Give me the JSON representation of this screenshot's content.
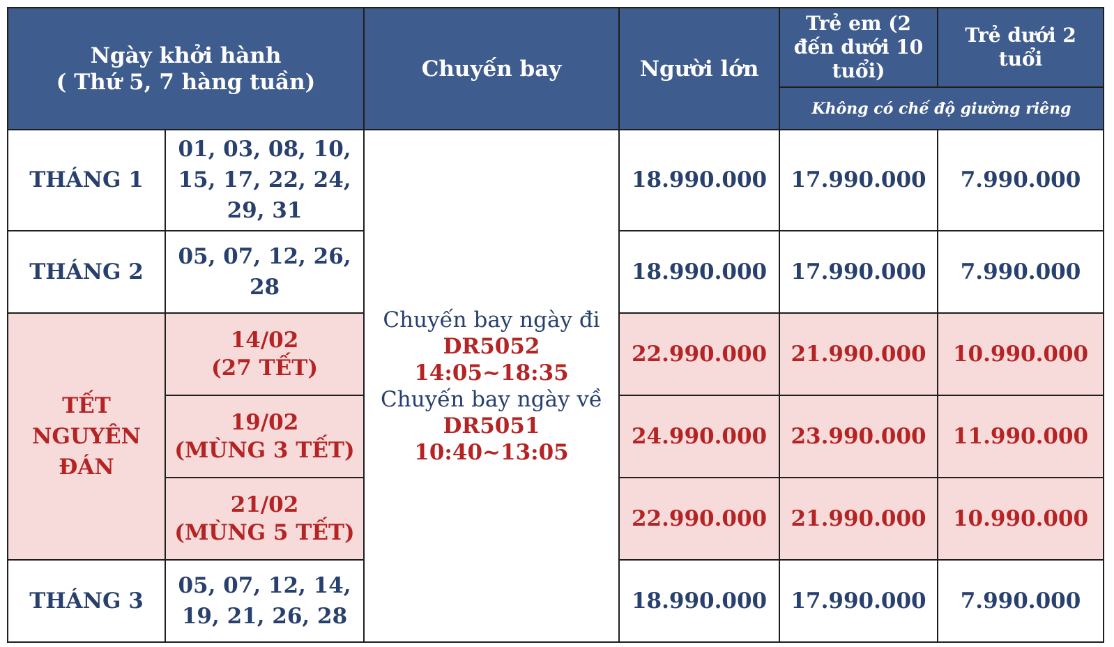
{
  "header": {
    "departure_line1": "Ngày khởi hành",
    "departure_line2": "( Thứ 5, 7 hàng tuần)",
    "flight": "Chuyến bay",
    "adult": "Người lớn",
    "child": "Trẻ em (2 đến dưới 10 tuổi)",
    "infant": "Trẻ dưới 2 tuổi",
    "no_bed_note": "Không có chế độ giường riêng"
  },
  "flight_info": {
    "outbound_caption": "Chuyến bay ngày đi",
    "outbound_code": "DR5052",
    "outbound_time": "14:05~18:35",
    "return_caption": "Chuyến bay ngày về",
    "return_code": "DR5051",
    "return_time": "10:40~13:05"
  },
  "rows": {
    "jan": {
      "label": "THÁNG 1",
      "dates": "01, 03, 08, 10, 15, 17, 22, 24, 29, 31",
      "adult": "18.990.000",
      "child": "17.990.000",
      "infant": "7.990.000"
    },
    "feb": {
      "label": "THÁNG 2",
      "dates": "05, 07, 12, 26, 28",
      "adult": "18.990.000",
      "child": "17.990.000",
      "infant": "7.990.000"
    },
    "tet": {
      "label": "TẾT NGUYÊN ĐÁN",
      "items": [
        {
          "date": "14/02",
          "note": "(27 TẾT)",
          "adult": "22.990.000",
          "child": "21.990.000",
          "infant": "10.990.000"
        },
        {
          "date": "19/02",
          "note": "(MÙNG 3 TẾT)",
          "adult": "24.990.000",
          "child": "23.990.000",
          "infant": "11.990.000"
        },
        {
          "date": "21/02",
          "note": "(MÙNG 5 TẾT)",
          "adult": "22.990.000",
          "child": "21.990.000",
          "infant": "10.990.000"
        }
      ]
    },
    "mar": {
      "label": "THÁNG 3",
      "dates": "05, 07, 12, 14, 19, 21, 26, 28",
      "adult": "18.990.000",
      "child": "17.990.000",
      "infant": "7.990.000"
    }
  },
  "colors": {
    "header_bg": "#3f5c8e",
    "text_navy": "#28406e",
    "text_red": "#b52424",
    "tet_bg": "#f7dada"
  }
}
